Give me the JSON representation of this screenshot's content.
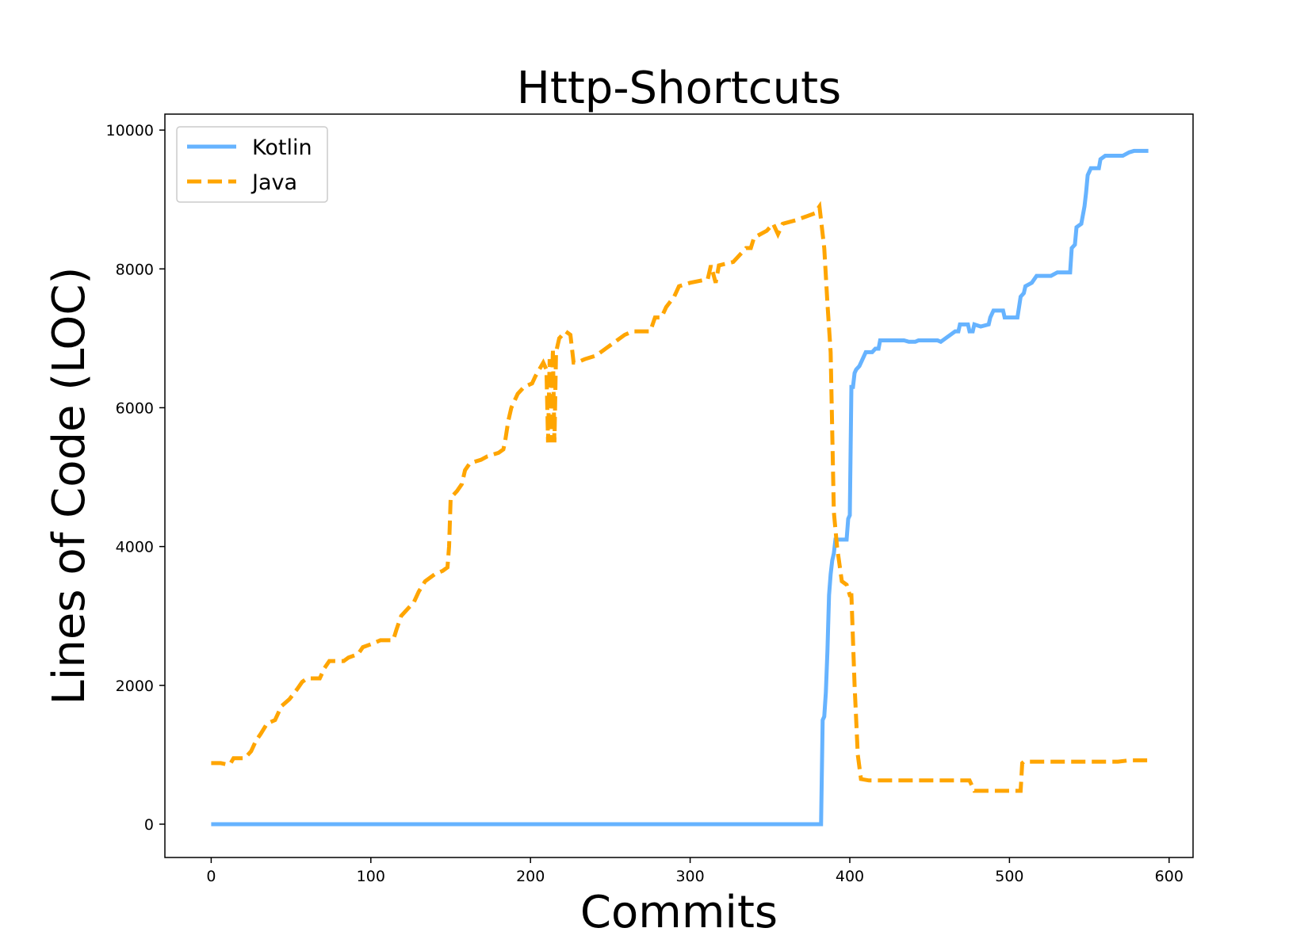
{
  "chart_data": {
    "type": "line",
    "title": "Http-Shortcuts",
    "xlabel": "Commits",
    "ylabel": "Lines of Code (LOC)",
    "xlim": [
      -29,
      615
    ],
    "ylim": [
      -480,
      10230
    ],
    "xticks": [
      0,
      100,
      200,
      300,
      400,
      500,
      600
    ],
    "yticks": [
      0,
      2000,
      4000,
      6000,
      8000,
      10000
    ],
    "xtick_labels": [
      "0",
      "100",
      "200",
      "300",
      "400",
      "500",
      "600"
    ],
    "ytick_labels": [
      "0",
      "2000",
      "4000",
      "6000",
      "8000",
      "10000"
    ],
    "grid": false,
    "legend_position": "upper left",
    "series": [
      {
        "name": "Kotlin",
        "color": "#66b3ff",
        "style": "solid",
        "points": [
          [
            0,
            0
          ],
          [
            382,
            0
          ],
          [
            383,
            1500
          ],
          [
            384,
            1550
          ],
          [
            385,
            1900
          ],
          [
            386,
            2500
          ],
          [
            387,
            3300
          ],
          [
            388,
            3600
          ],
          [
            389,
            3800
          ],
          [
            390,
            3900
          ],
          [
            391,
            4100
          ],
          [
            398,
            4100
          ],
          [
            399,
            4400
          ],
          [
            400,
            4450
          ],
          [
            401,
            6300
          ],
          [
            402,
            6300
          ],
          [
            403,
            6500
          ],
          [
            404,
            6550
          ],
          [
            406,
            6600
          ],
          [
            408,
            6700
          ],
          [
            410,
            6800
          ],
          [
            414,
            6800
          ],
          [
            416,
            6850
          ],
          [
            418,
            6850
          ],
          [
            419,
            6970
          ],
          [
            434,
            6970
          ],
          [
            437,
            6950
          ],
          [
            441,
            6950
          ],
          [
            443,
            6970
          ],
          [
            455,
            6970
          ],
          [
            457,
            6950
          ],
          [
            460,
            7000
          ],
          [
            463,
            7050
          ],
          [
            466,
            7100
          ],
          [
            468,
            7100
          ],
          [
            469,
            7200
          ],
          [
            474,
            7200
          ],
          [
            475,
            7100
          ],
          [
            477,
            7100
          ],
          [
            478,
            7200
          ],
          [
            482,
            7170
          ],
          [
            487,
            7200
          ],
          [
            488,
            7300
          ],
          [
            490,
            7400
          ],
          [
            496,
            7400
          ],
          [
            497,
            7300
          ],
          [
            505,
            7300
          ],
          [
            506,
            7450
          ],
          [
            507,
            7600
          ],
          [
            509,
            7650
          ],
          [
            510,
            7750
          ],
          [
            514,
            7800
          ],
          [
            517,
            7900
          ],
          [
            526,
            7900
          ],
          [
            530,
            7950
          ],
          [
            538,
            7950
          ],
          [
            539,
            8300
          ],
          [
            541,
            8350
          ],
          [
            542,
            8600
          ],
          [
            545,
            8650
          ],
          [
            547,
            8900
          ],
          [
            548,
            9100
          ],
          [
            549,
            9350
          ],
          [
            551,
            9450
          ],
          [
            556,
            9450
          ],
          [
            557,
            9580
          ],
          [
            560,
            9630
          ],
          [
            571,
            9630
          ],
          [
            575,
            9680
          ],
          [
            578,
            9700
          ],
          [
            587,
            9700
          ]
        ]
      },
      {
        "name": "Java",
        "color": "#ffa500",
        "style": "dashed",
        "points": [
          [
            0,
            880
          ],
          [
            6,
            880
          ],
          [
            10,
            860
          ],
          [
            12,
            870
          ],
          [
            14,
            950
          ],
          [
            21,
            950
          ],
          [
            25,
            1050
          ],
          [
            28,
            1200
          ],
          [
            31,
            1300
          ],
          [
            35,
            1450
          ],
          [
            40,
            1500
          ],
          [
            44,
            1700
          ],
          [
            49,
            1800
          ],
          [
            54,
            1950
          ],
          [
            57,
            2050
          ],
          [
            60,
            2100
          ],
          [
            68,
            2100
          ],
          [
            71,
            2250
          ],
          [
            74,
            2350
          ],
          [
            83,
            2350
          ],
          [
            86,
            2400
          ],
          [
            92,
            2450
          ],
          [
            95,
            2550
          ],
          [
            101,
            2600
          ],
          [
            106,
            2650
          ],
          [
            114,
            2650
          ],
          [
            116,
            2800
          ],
          [
            119,
            3000
          ],
          [
            123,
            3100
          ],
          [
            127,
            3200
          ],
          [
            130,
            3350
          ],
          [
            134,
            3500
          ],
          [
            140,
            3600
          ],
          [
            145,
            3650
          ],
          [
            148,
            3700
          ],
          [
            149,
            4000
          ],
          [
            150,
            4700
          ],
          [
            154,
            4800
          ],
          [
            157,
            4900
          ],
          [
            159,
            5100
          ],
          [
            162,
            5200
          ],
          [
            169,
            5250
          ],
          [
            173,
            5300
          ],
          [
            180,
            5350
          ],
          [
            183,
            5400
          ],
          [
            184,
            5500
          ],
          [
            186,
            5800
          ],
          [
            188,
            6000
          ],
          [
            192,
            6200
          ],
          [
            196,
            6300
          ],
          [
            201,
            6350
          ],
          [
            203,
            6450
          ],
          [
            208,
            6650
          ],
          [
            210,
            6550
          ],
          [
            211,
            5500
          ],
          [
            212,
            6700
          ],
          [
            213,
            5500
          ],
          [
            214,
            6850
          ],
          [
            215,
            5500
          ],
          [
            216,
            6800
          ],
          [
            218,
            7000
          ],
          [
            222,
            7100
          ],
          [
            225,
            7050
          ],
          [
            227,
            6650
          ],
          [
            229,
            6650
          ],
          [
            234,
            6700
          ],
          [
            241,
            6750
          ],
          [
            247,
            6850
          ],
          [
            253,
            6950
          ],
          [
            259,
            7050
          ],
          [
            264,
            7100
          ],
          [
            275,
            7100
          ],
          [
            278,
            7300
          ],
          [
            282,
            7300
          ],
          [
            285,
            7450
          ],
          [
            290,
            7600
          ],
          [
            293,
            7750
          ],
          [
            300,
            7800
          ],
          [
            311,
            7850
          ],
          [
            313,
            8050
          ],
          [
            316,
            7800
          ],
          [
            318,
            8050
          ],
          [
            327,
            8100
          ],
          [
            331,
            8200
          ],
          [
            335,
            8300
          ],
          [
            338,
            8300
          ],
          [
            340,
            8450
          ],
          [
            348,
            8550
          ],
          [
            352,
            8650
          ],
          [
            355,
            8500
          ],
          [
            358,
            8650
          ],
          [
            366,
            8700
          ],
          [
            372,
            8750
          ],
          [
            378,
            8800
          ],
          [
            381,
            8900
          ],
          [
            384,
            8300
          ],
          [
            386,
            7500
          ],
          [
            388,
            6800
          ],
          [
            390,
            4500
          ],
          [
            392,
            4000
          ],
          [
            395,
            3500
          ],
          [
            398,
            3450
          ],
          [
            400,
            3300
          ],
          [
            401,
            3300
          ],
          [
            403,
            2000
          ],
          [
            405,
            1000
          ],
          [
            407,
            650
          ],
          [
            412,
            630
          ],
          [
            447,
            630
          ],
          [
            475,
            630
          ],
          [
            478,
            480
          ],
          [
            505,
            480
          ],
          [
            507,
            480
          ],
          [
            508,
            880
          ],
          [
            509,
            900
          ],
          [
            513,
            900
          ],
          [
            568,
            900
          ],
          [
            575,
            920
          ],
          [
            590,
            920
          ]
        ]
      }
    ]
  }
}
